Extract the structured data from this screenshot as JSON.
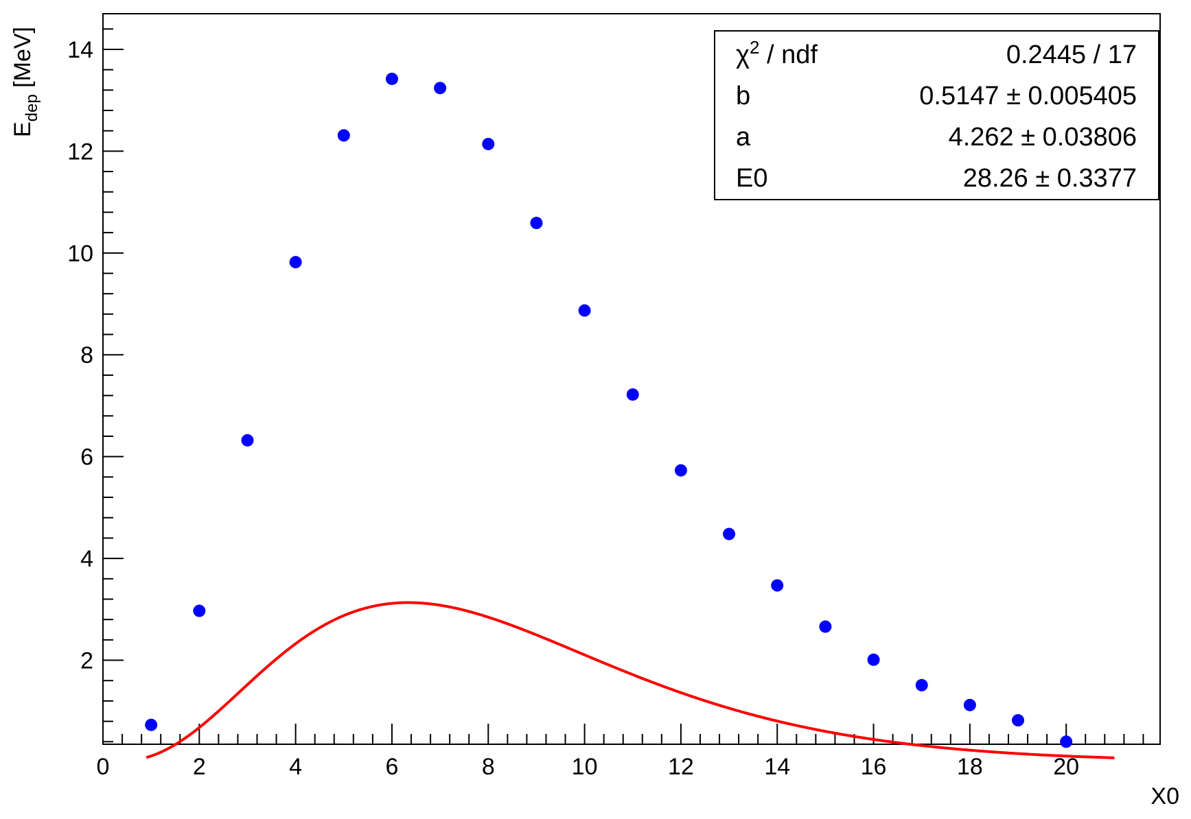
{
  "chart_data": {
    "type": "scatter",
    "xlabel": "X0",
    "ylabel": {
      "base": "E",
      "subscript": "dep",
      "unit": "[MeV]"
    },
    "xlim": [
      0,
      21.95
    ],
    "ylim": [
      0.35,
      14.7
    ],
    "xticks": [
      0,
      2,
      4,
      6,
      8,
      10,
      12,
      14,
      16,
      18,
      20
    ],
    "yticks": [
      2,
      4,
      6,
      8,
      10,
      12,
      14
    ],
    "grid": false,
    "series": [
      {
        "kind": "points",
        "color": "#0000ff",
        "x": [
          1,
          2,
          3,
          4,
          5,
          6,
          7,
          8,
          9,
          10,
          11,
          12,
          13,
          14,
          15,
          16,
          17,
          18,
          19,
          20
        ],
        "y": [
          0.73,
          2.97,
          6.32,
          9.82,
          12.31,
          13.42,
          13.24,
          12.14,
          10.59,
          8.87,
          7.22,
          5.73,
          4.48,
          3.47,
          2.66,
          2.01,
          1.51,
          1.12,
          0.82,
          0.4
        ]
      },
      {
        "kind": "fit",
        "color": "#ff0000",
        "function": "E0*b*(b*t)^(a-1)*exp(-b*t)/Gamma(a)",
        "x_range": [
          0.9,
          21.0
        ],
        "params": {
          "E0": 28.26,
          "a": 4.262,
          "b": 0.5147
        }
      }
    ],
    "legend_position": "top-right",
    "stats_box": [
      {
        "label": "χ",
        "sup": "2",
        "label_rest": " / ndf",
        "value": "0.2445 / 17"
      },
      {
        "label": "b",
        "value": "0.5147 ± 0.005405"
      },
      {
        "label": "a",
        "value": "4.262 ± 0.03806"
      },
      {
        "label": "E0",
        "value": "28.26 ± 0.3377"
      }
    ]
  }
}
